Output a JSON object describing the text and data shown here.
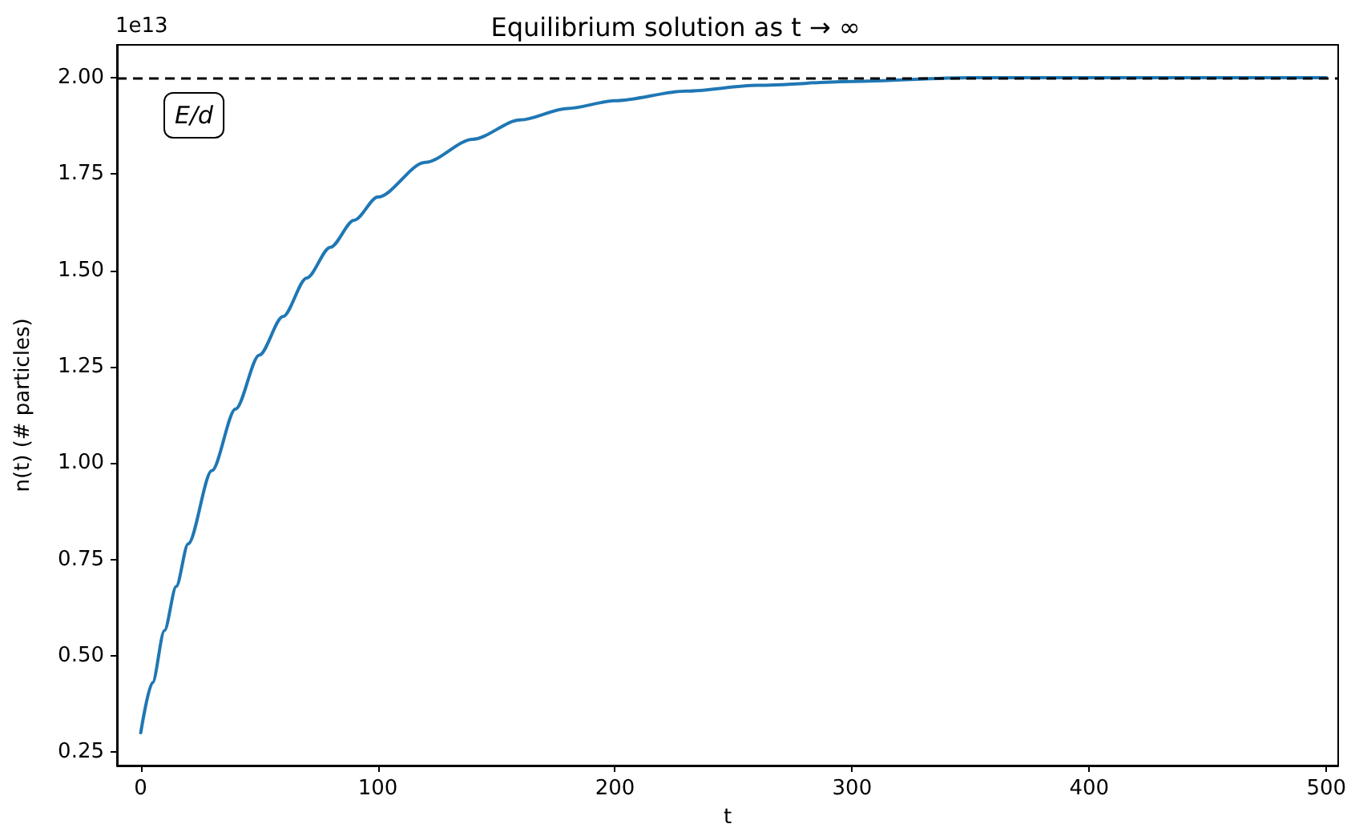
{
  "chart_data": {
    "type": "line",
    "title": "Equilibrium solution as t → ∞",
    "xlabel": "t",
    "ylabel": "n(t) (# particles)",
    "annotations": [
      "1e13"
    ],
    "x": [
      0,
      5,
      10,
      15,
      20,
      30,
      40,
      50,
      60,
      70,
      80,
      90,
      100,
      120,
      140,
      160,
      180,
      200,
      230,
      260,
      300,
      350,
      400,
      450,
      500
    ],
    "series": [
      {
        "color": "#1f77b4",
        "values": [
          0.3,
          0.43,
          0.565,
          0.68,
          0.79,
          0.98,
          1.14,
          1.28,
          1.38,
          1.48,
          1.56,
          1.63,
          1.69,
          1.78,
          1.84,
          1.89,
          1.92,
          1.94,
          1.965,
          1.98,
          1.99,
          2.0,
          2.0,
          2.0,
          2.0
        ]
      }
    ],
    "xlim": [
      -10,
      505
    ],
    "xticks": [
      0,
      100,
      200,
      300,
      400,
      500
    ],
    "ylim": [
      0.215,
      2.085
    ],
    "yticks": [
      {
        "value": 0.25,
        "label": "0.25"
      },
      {
        "value": 0.5,
        "label": "0.50"
      },
      {
        "value": 0.75,
        "label": "0.75"
      },
      {
        "value": 1,
        "label": "1.00"
      },
      {
        "value": 1.25,
        "label": "1.25"
      },
      {
        "value": 1.5,
        "label": "1.50"
      },
      {
        "value": 1.75,
        "label": "1.75"
      },
      {
        "value": 2,
        "label": "2.00"
      }
    ],
    "ref_lines": [
      {
        "axis": "y",
        "value": 2.0,
        "label": "E/d",
        "color": "#000000",
        "line_style": "dashed"
      }
    ],
    "grid": false,
    "marker": "none",
    "line_style": "solid"
  }
}
